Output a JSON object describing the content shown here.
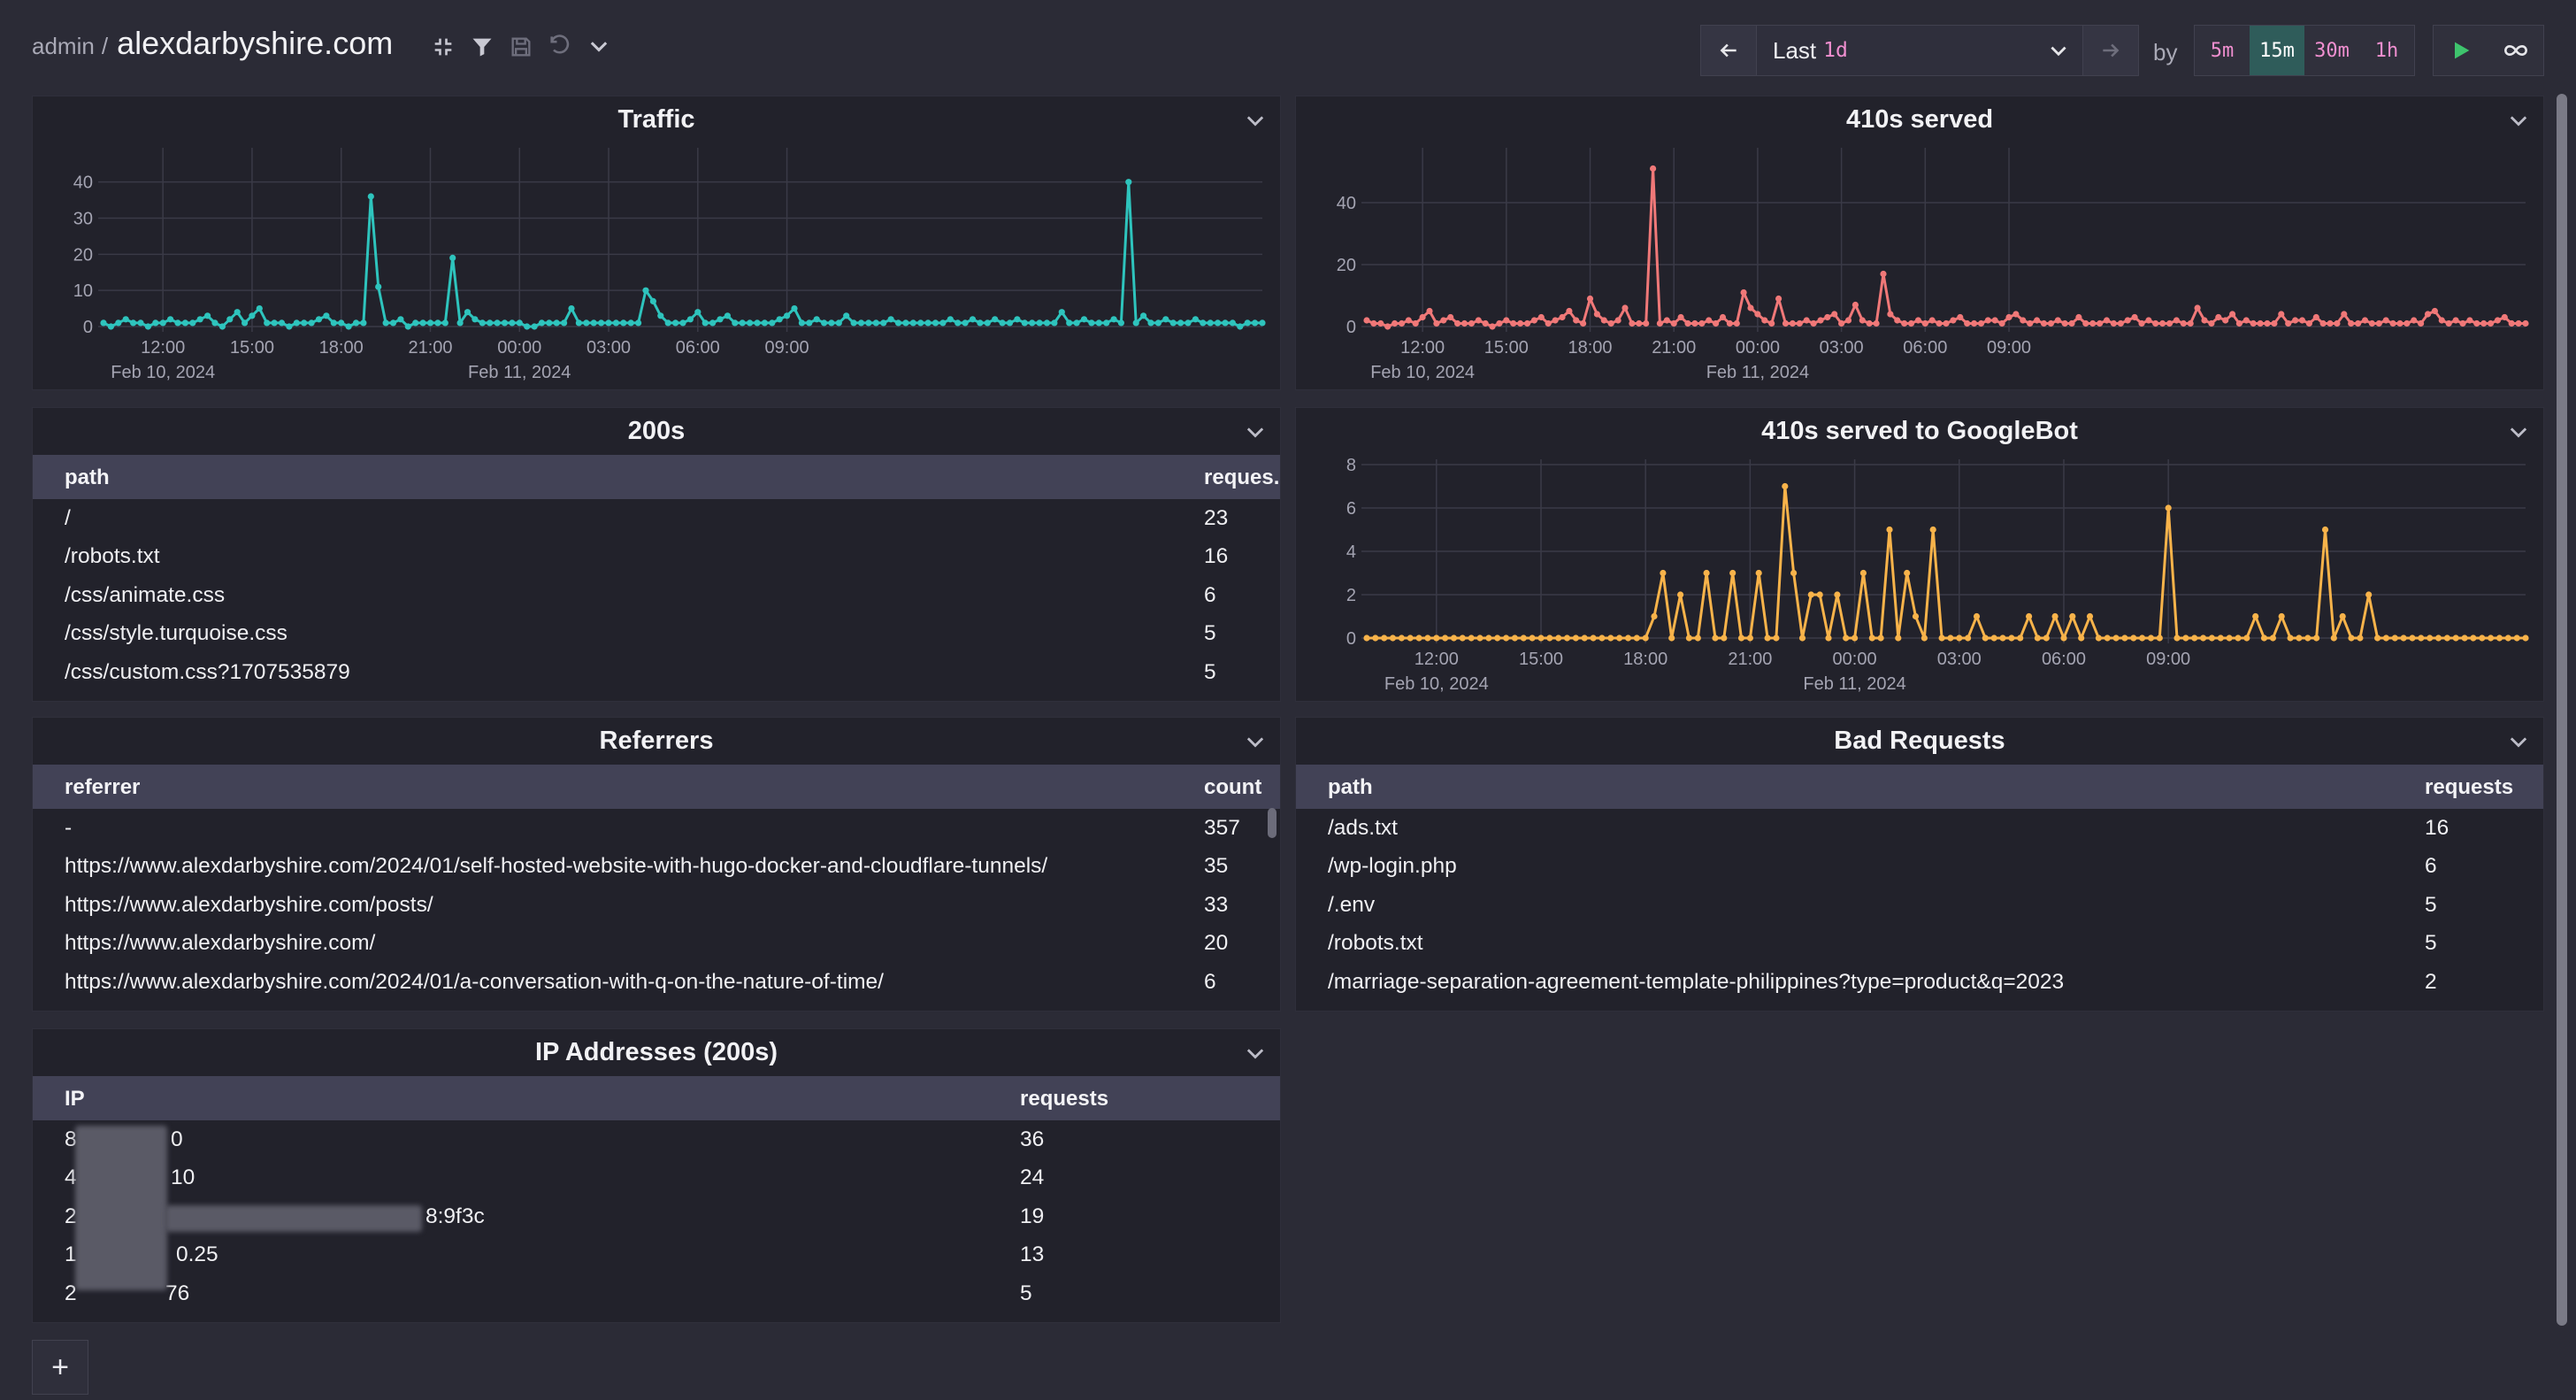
{
  "header": {
    "admin": "admin",
    "separator": "/",
    "site": "alexdarbyshire.com",
    "range_label": "Last",
    "range_value": "1d",
    "by_label": "by",
    "buckets": [
      "5m",
      "15m",
      "30m",
      "1h"
    ],
    "active_bucket": "15m",
    "add_label": "+"
  },
  "colors": {
    "traffic": "#2ec4bd",
    "served410": "#f07878",
    "googlebot": "#f8b34a",
    "active_bucket_bg": "#2f5c5a"
  },
  "time_axis": {
    "ticks": [
      "12:00",
      "15:00",
      "18:00",
      "21:00",
      "00:00",
      "03:00",
      "06:00",
      "09:00"
    ],
    "date_labels": [
      "Feb 10, 2024",
      "Feb 11, 2024"
    ]
  },
  "panels": {
    "traffic": {
      "title": "Traffic"
    },
    "served410": {
      "title": "410s served"
    },
    "twohundreds": {
      "title": "200s",
      "columns": [
        "path",
        "reques..."
      ],
      "rows": [
        [
          "/",
          "23"
        ],
        [
          "/robots.txt",
          "16"
        ],
        [
          "/css/animate.css",
          "6"
        ],
        [
          "/css/style.turquoise.css",
          "5"
        ],
        [
          "/css/custom.css?1707535879",
          "5"
        ]
      ]
    },
    "googlebot": {
      "title": "410s served to GoogleBot"
    },
    "referrers": {
      "title": "Referrers",
      "columns": [
        "referrer",
        "count"
      ],
      "rows": [
        [
          "-",
          "357"
        ],
        [
          "https://www.alexdarbyshire.com/2024/01/self-hosted-website-with-hugo-docker-and-cloudflare-tunnels/",
          "35"
        ],
        [
          "https://www.alexdarbyshire.com/posts/",
          "33"
        ],
        [
          "https://www.alexdarbyshire.com/",
          "20"
        ],
        [
          "https://www.alexdarbyshire.com/2024/01/a-conversation-with-q-on-the-nature-of-time/",
          "6"
        ]
      ]
    },
    "bad": {
      "title": "Bad Requests",
      "columns": [
        "path",
        "requests"
      ],
      "rows": [
        [
          "/ads.txt",
          "16"
        ],
        [
          "/wp-login.php",
          "6"
        ],
        [
          "/.env",
          "5"
        ],
        [
          "/robots.txt",
          "5"
        ],
        [
          "/marriage-separation-agreement-template-philippines?type=product&q=2023",
          "2"
        ]
      ]
    },
    "ips": {
      "title": "IP Addresses (200s)",
      "columns": [
        "IP",
        "requests"
      ],
      "rows": [
        [
          "8",
          "0",
          "36"
        ],
        [
          "4",
          "10",
          "24"
        ],
        [
          "2",
          "8:9f3c",
          "19"
        ],
        [
          "1",
          "0.25",
          "13"
        ],
        [
          "2",
          "76",
          "5"
        ]
      ]
    }
  },
  "chart_data": [
    {
      "type": "line",
      "title": "Traffic",
      "x_start": "Feb 10, 2024 10:00",
      "interval": "15m",
      "ylim": [
        0,
        48
      ],
      "yticks": [
        0,
        10,
        20,
        30,
        40
      ],
      "grid": true,
      "series": [
        {
          "values": [
            1,
            0,
            1,
            2,
            1,
            1,
            0,
            1,
            1,
            2,
            1,
            1,
            1,
            2,
            3,
            1,
            0,
            2,
            4,
            1,
            3,
            5,
            1,
            1,
            1,
            0,
            1,
            1,
            1,
            2,
            3,
            1,
            1,
            0,
            1,
            1,
            36,
            11,
            1,
            1,
            2,
            0,
            1,
            1,
            1,
            1,
            1,
            19,
            1,
            4,
            2,
            1,
            1,
            1,
            1,
            1,
            1,
            0,
            0,
            1,
            1,
            1,
            1,
            5,
            1,
            1,
            1,
            1,
            1,
            1,
            1,
            1,
            1,
            10,
            7,
            3,
            1,
            1,
            1,
            2,
            4,
            1,
            1,
            2,
            3,
            1,
            1,
            1,
            1,
            1,
            1,
            2,
            3,
            5,
            1,
            1,
            2,
            1,
            1,
            1,
            3,
            1,
            1,
            1,
            1,
            1,
            2,
            1,
            1,
            1,
            1,
            1,
            1,
            1,
            2,
            1,
            1,
            2,
            1,
            1,
            2,
            1,
            1,
            2,
            1,
            1,
            1,
            1,
            1,
            4,
            1,
            1,
            2,
            1,
            1,
            1,
            2,
            1,
            40,
            1,
            3,
            1,
            1,
            2,
            1,
            1,
            1,
            2,
            1,
            1,
            1,
            1,
            1,
            0,
            1,
            1,
            1
          ]
        }
      ]
    },
    {
      "type": "line",
      "title": "410s served",
      "x_start": "Feb 10, 2024 10:00",
      "interval": "15m",
      "ylim": [
        0,
        56
      ],
      "yticks": [
        0,
        20,
        40
      ],
      "grid": true,
      "series": [
        {
          "values": [
            2,
            1,
            1,
            0,
            1,
            1,
            2,
            1,
            3,
            5,
            1,
            2,
            3,
            1,
            1,
            1,
            2,
            1,
            0,
            1,
            2,
            1,
            1,
            1,
            2,
            3,
            1,
            2,
            3,
            5,
            2,
            1,
            9,
            4,
            2,
            1,
            2,
            6,
            1,
            1,
            1,
            51,
            1,
            2,
            1,
            3,
            1,
            1,
            1,
            2,
            1,
            3,
            1,
            1,
            11,
            6,
            4,
            2,
            1,
            9,
            1,
            1,
            1,
            2,
            1,
            2,
            3,
            4,
            1,
            2,
            7,
            2,
            1,
            1,
            17,
            4,
            2,
            1,
            1,
            2,
            1,
            2,
            1,
            1,
            2,
            3,
            1,
            1,
            1,
            2,
            2,
            1,
            3,
            4,
            2,
            1,
            2,
            1,
            1,
            2,
            1,
            1,
            3,
            1,
            1,
            1,
            2,
            1,
            1,
            2,
            3,
            1,
            2,
            1,
            1,
            1,
            2,
            1,
            1,
            6,
            2,
            1,
            3,
            2,
            4,
            1,
            2,
            1,
            1,
            1,
            1,
            4,
            1,
            2,
            2,
            1,
            3,
            1,
            1,
            1,
            4,
            1,
            1,
            2,
            1,
            1,
            2,
            1,
            1,
            1,
            2,
            1,
            4,
            5,
            2,
            1,
            2,
            1,
            2,
            1,
            1,
            1,
            2,
            3,
            1,
            1,
            1
          ]
        }
      ]
    },
    {
      "type": "line",
      "title": "410s served to GoogleBot",
      "x_start": "Feb 10, 2024 10:00",
      "interval": "15m",
      "ylim": [
        0,
        8
      ],
      "yticks": [
        0,
        2,
        4,
        6,
        8
      ],
      "grid": true,
      "series": [
        {
          "values": [
            0,
            0,
            0,
            0,
            0,
            0,
            0,
            0,
            0,
            0,
            0,
            0,
            0,
            0,
            0,
            0,
            0,
            0,
            0,
            0,
            0,
            0,
            0,
            0,
            0,
            0,
            0,
            0,
            0,
            0,
            0,
            0,
            0,
            1,
            3,
            0,
            2,
            0,
            0,
            3,
            0,
            0,
            3,
            0,
            0,
            3,
            0,
            0,
            7,
            3,
            0,
            2,
            2,
            0,
            2,
            0,
            0,
            3,
            0,
            0,
            5,
            0,
            3,
            1,
            0,
            5,
            0,
            0,
            0,
            0,
            1,
            0,
            0,
            0,
            0,
            0,
            1,
            0,
            0,
            1,
            0,
            1,
            0,
            1,
            0,
            0,
            0,
            0,
            0,
            0,
            0,
            0,
            6,
            0,
            0,
            0,
            0,
            0,
            0,
            0,
            0,
            0,
            1,
            0,
            0,
            1,
            0,
            0,
            0,
            0,
            5,
            0,
            1,
            0,
            0,
            2,
            0,
            0,
            0,
            0,
            0,
            0,
            0,
            0,
            0,
            0,
            0,
            0,
            0,
            0,
            0,
            0,
            0,
            0
          ]
        }
      ]
    }
  ]
}
